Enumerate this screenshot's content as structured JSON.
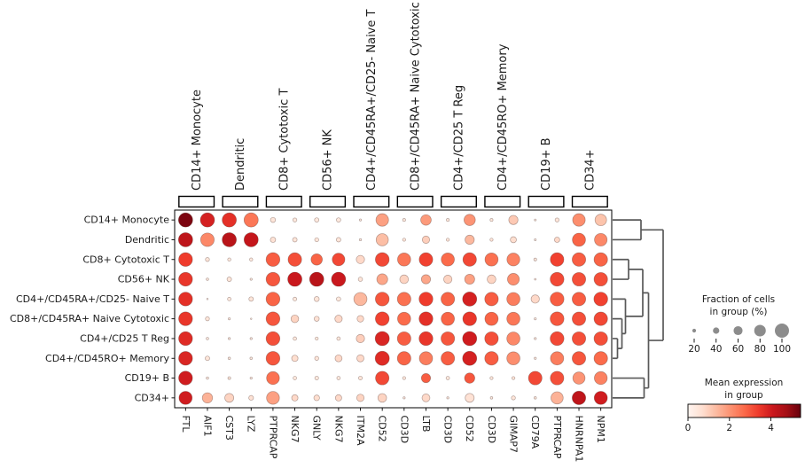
{
  "figure": {
    "background": "#ffffff",
    "frame_color": "#000000"
  },
  "chart_data": {
    "type": "heatmap",
    "subtype": "dotplot",
    "description": "Dot plot of marker gene mean expression (color) and fraction of expressing cells (dot size) per cell type, with column group brackets and row dendrogram",
    "rows": [
      "CD14+ Monocyte",
      "Dendritic",
      "CD8+ Cytotoxic T",
      "CD56+ NK",
      "CD4+/CD45RA+/CD25- Naive T",
      "CD8+/CD45RA+ Naive Cytotoxic",
      "CD4+/CD25 T Reg",
      "CD4+/CD45RO+ Memory",
      "CD19+ B",
      "CD34+"
    ],
    "columns": [
      "FTL",
      "AIF1",
      "CST3",
      "LYZ",
      "PTPRCAP",
      "NKG7",
      "GNLY",
      "NKG7",
      "ITM2A",
      "CD52",
      "CD3D",
      "LTB",
      "CD3D",
      "CD52",
      "CD3D",
      "GIMAP7",
      "CD79A",
      "PTPRCAP",
      "HNRNPA1",
      "NPM1"
    ],
    "column_groups": [
      {
        "label": "CD14+ Monocyte",
        "cols": [
          0,
          1
        ]
      },
      {
        "label": "Dendritic",
        "cols": [
          2,
          3
        ]
      },
      {
        "label": "CD8+ Cytotoxic T",
        "cols": [
          4,
          5
        ]
      },
      {
        "label": "CD56+ NK",
        "cols": [
          6,
          7
        ]
      },
      {
        "label": "CD4+/CD45RA+/CD25- Naive T",
        "cols": [
          8,
          9
        ]
      },
      {
        "label": "CD8+/CD45RA+ Naive Cytotoxic",
        "cols": [
          10,
          11
        ]
      },
      {
        "label": "CD4+/CD25 T Reg",
        "cols": [
          12,
          13
        ]
      },
      {
        "label": "CD4+/CD45RO+ Memory",
        "cols": [
          14,
          15
        ]
      },
      {
        "label": "CD19+ B",
        "cols": [
          16,
          17
        ]
      },
      {
        "label": "CD34+",
        "cols": [
          18,
          19
        ]
      }
    ],
    "dots_legend_note": "each dot = [fraction_of_cells_pct, mean_expression]",
    "dots": [
      [
        [
          100,
          5.2
        ],
        [
          100,
          3.9
        ],
        [
          100,
          3.6
        ],
        [
          100,
          2.5
        ],
        [
          30,
          0.5
        ],
        [
          22,
          0.4
        ],
        [
          25,
          0.4
        ],
        [
          25,
          0.4
        ],
        [
          8,
          0.3
        ],
        [
          88,
          1.8
        ],
        [
          14,
          0.4
        ],
        [
          72,
          1.9
        ],
        [
          14,
          0.4
        ],
        [
          78,
          2.0
        ],
        [
          14,
          0.4
        ],
        [
          62,
          1.1
        ],
        [
          6,
          0.3
        ],
        [
          22,
          0.5
        ],
        [
          88,
          2.1
        ],
        [
          80,
          1.2
        ]
      ],
      [
        [
          100,
          4.3
        ],
        [
          95,
          2.2
        ],
        [
          100,
          4.4
        ],
        [
          100,
          4.2
        ],
        [
          32,
          0.6
        ],
        [
          26,
          0.5
        ],
        [
          22,
          0.5
        ],
        [
          26,
          0.5
        ],
        [
          8,
          0.3
        ],
        [
          85,
          1.3
        ],
        [
          15,
          0.5
        ],
        [
          48,
          1.0
        ],
        [
          15,
          0.5
        ],
        [
          62,
          1.4
        ],
        [
          15,
          0.5
        ],
        [
          38,
          0.7
        ],
        [
          6,
          0.3
        ],
        [
          32,
          0.8
        ],
        [
          92,
          2.8
        ],
        [
          88,
          2.2
        ]
      ],
      [
        [
          97,
          3.4
        ],
        [
          22,
          0.5
        ],
        [
          16,
          0.4
        ],
        [
          16,
          0.4
        ],
        [
          97,
          2.9
        ],
        [
          95,
          3.1
        ],
        [
          78,
          2.8
        ],
        [
          88,
          3.2
        ],
        [
          55,
          0.8
        ],
        [
          97,
          3.2
        ],
        [
          92,
          2.5
        ],
        [
          95,
          3.3
        ],
        [
          92,
          2.7
        ],
        [
          95,
          3.2
        ],
        [
          92,
          2.6
        ],
        [
          90,
          2.3
        ],
        [
          13,
          0.4
        ],
        [
          95,
          3.3
        ],
        [
          95,
          2.9
        ],
        [
          95,
          2.8
        ]
      ],
      [
        [
          97,
          3.5
        ],
        [
          10,
          0.4
        ],
        [
          26,
          0.5
        ],
        [
          8,
          0.3
        ],
        [
          97,
          3.0
        ],
        [
          100,
          4.1
        ],
        [
          100,
          4.4
        ],
        [
          100,
          4.1
        ],
        [
          24,
          0.5
        ],
        [
          75,
          1.7
        ],
        [
          58,
          0.9
        ],
        [
          62,
          1.7
        ],
        [
          55,
          0.9
        ],
        [
          68,
          1.8
        ],
        [
          58,
          0.9
        ],
        [
          82,
          2.1
        ],
        [
          5,
          0.3
        ],
        [
          97,
          3.2
        ],
        [
          95,
          3.1
        ],
        [
          95,
          3.1
        ]
      ],
      [
        [
          97,
          3.6
        ],
        [
          3,
          0.2
        ],
        [
          18,
          0.4
        ],
        [
          26,
          0.5
        ],
        [
          97,
          2.8
        ],
        [
          20,
          0.4
        ],
        [
          30,
          0.5
        ],
        [
          24,
          0.4
        ],
        [
          92,
          1.4
        ],
        [
          97,
          3.0
        ],
        [
          95,
          2.6
        ],
        [
          97,
          3.4
        ],
        [
          95,
          2.8
        ],
        [
          100,
          3.9
        ],
        [
          95,
          2.9
        ],
        [
          92,
          2.4
        ],
        [
          55,
          0.8
        ],
        [
          97,
          2.9
        ],
        [
          95,
          2.9
        ],
        [
          97,
          3.3
        ]
      ],
      [
        [
          97,
          3.5
        ],
        [
          22,
          0.5
        ],
        [
          8,
          0.3
        ],
        [
          3,
          0.2
        ],
        [
          97,
          3.0
        ],
        [
          50,
          0.9
        ],
        [
          30,
          0.6
        ],
        [
          48,
          0.8
        ],
        [
          42,
          0.8
        ],
        [
          97,
          3.3
        ],
        [
          92,
          2.7
        ],
        [
          97,
          3.6
        ],
        [
          93,
          2.8
        ],
        [
          97,
          3.5
        ],
        [
          93,
          2.8
        ],
        [
          92,
          2.5
        ],
        [
          8,
          0.3
        ],
        [
          97,
          3.0
        ],
        [
          95,
          3.1
        ],
        [
          95,
          3.2
        ]
      ],
      [
        [
          97,
          3.7
        ],
        [
          10,
          0.3
        ],
        [
          8,
          0.3
        ],
        [
          8,
          0.3
        ],
        [
          97,
          3.1
        ],
        [
          18,
          0.4
        ],
        [
          15,
          0.4
        ],
        [
          18,
          0.4
        ],
        [
          55,
          1.0
        ],
        [
          100,
          3.8
        ],
        [
          95,
          2.9
        ],
        [
          97,
          3.5
        ],
        [
          95,
          3.0
        ],
        [
          100,
          4.0
        ],
        [
          95,
          3.1
        ],
        [
          92,
          2.2
        ],
        [
          8,
          0.3
        ],
        [
          97,
          3.2
        ],
        [
          95,
          3.1
        ],
        [
          95,
          3.1
        ]
      ],
      [
        [
          97,
          3.8
        ],
        [
          26,
          0.5
        ],
        [
          10,
          0.3
        ],
        [
          10,
          0.3
        ],
        [
          97,
          3.0
        ],
        [
          40,
          0.7
        ],
        [
          22,
          0.5
        ],
        [
          45,
          0.8
        ],
        [
          46,
          0.8
        ],
        [
          100,
          3.7
        ],
        [
          95,
          2.8
        ],
        [
          93,
          2.4
        ],
        [
          95,
          2.9
        ],
        [
          100,
          3.9
        ],
        [
          95,
          2.9
        ],
        [
          92,
          2.1
        ],
        [
          8,
          0.3
        ],
        [
          93,
          2.4
        ],
        [
          95,
          3.0
        ],
        [
          95,
          2.7
        ]
      ],
      [
        [
          97,
          4.0
        ],
        [
          10,
          0.3
        ],
        [
          13,
          0.4
        ],
        [
          8,
          0.3
        ],
        [
          90,
          2.6
        ],
        [
          18,
          0.4
        ],
        [
          20,
          0.4
        ],
        [
          18,
          0.4
        ],
        [
          20,
          0.5
        ],
        [
          95,
          3.2
        ],
        [
          15,
          0.4
        ],
        [
          62,
          2.9
        ],
        [
          18,
          0.4
        ],
        [
          70,
          3.0
        ],
        [
          15,
          0.4
        ],
        [
          15,
          0.5
        ],
        [
          95,
          3.2
        ],
        [
          95,
          3.1
        ],
        [
          85,
          2.0
        ],
        [
          90,
          2.3
        ]
      ],
      [
        [
          92,
          4.0
        ],
        [
          70,
          1.5
        ],
        [
          60,
          0.9
        ],
        [
          28,
          0.6
        ],
        [
          90,
          1.8
        ],
        [
          40,
          0.8
        ],
        [
          35,
          0.7
        ],
        [
          40,
          0.8
        ],
        [
          48,
          0.9
        ],
        [
          58,
          0.9
        ],
        [
          8,
          0.3
        ],
        [
          52,
          0.8
        ],
        [
          8,
          0.3
        ],
        [
          60,
          0.6
        ],
        [
          10,
          0.3
        ],
        [
          22,
          0.5
        ],
        [
          10,
          0.4
        ],
        [
          85,
          1.5
        ],
        [
          95,
          4.3
        ],
        [
          92,
          4.0
        ]
      ]
    ],
    "size_legend": {
      "title_lines": [
        "Fraction of cells",
        "in group (%)"
      ],
      "ticks": [
        "20",
        "40",
        "60",
        "80",
        "100"
      ],
      "tick_values": [
        20,
        40,
        60,
        80,
        100
      ]
    },
    "color_legend": {
      "title_lines": [
        "Mean expression",
        "in group"
      ],
      "ticks": [
        "0",
        "2",
        "4"
      ],
      "tick_values": [
        0,
        2,
        4
      ],
      "vmin": 0,
      "vmax": 5.43,
      "colormap": "Reds"
    },
    "dendrogram": {
      "orientation": "right",
      "merges": [
        [
          0,
          1,
          723
        ],
        [
          2,
          3,
          709
        ],
        [
          6,
          7,
          696.5
        ],
        [
          5,
          "m2",
          701.5
        ],
        [
          4,
          "m3",
          705.5
        ],
        [
          "m1",
          "m4",
          725
        ],
        [
          8,
          9,
          726.5
        ],
        [
          "m5",
          "m6",
          731.5
        ],
        [
          "m0",
          "m7",
          748
        ]
      ]
    },
    "axis": {
      "grid": false,
      "legend_position": "right"
    }
  },
  "colors": {
    "dot_edge": "rgba(90,60,50,0.45)",
    "dendrogram": "#595959",
    "legend_dot": "#8c8c8c",
    "frame": "#000000",
    "text": "#1a1a1a"
  }
}
